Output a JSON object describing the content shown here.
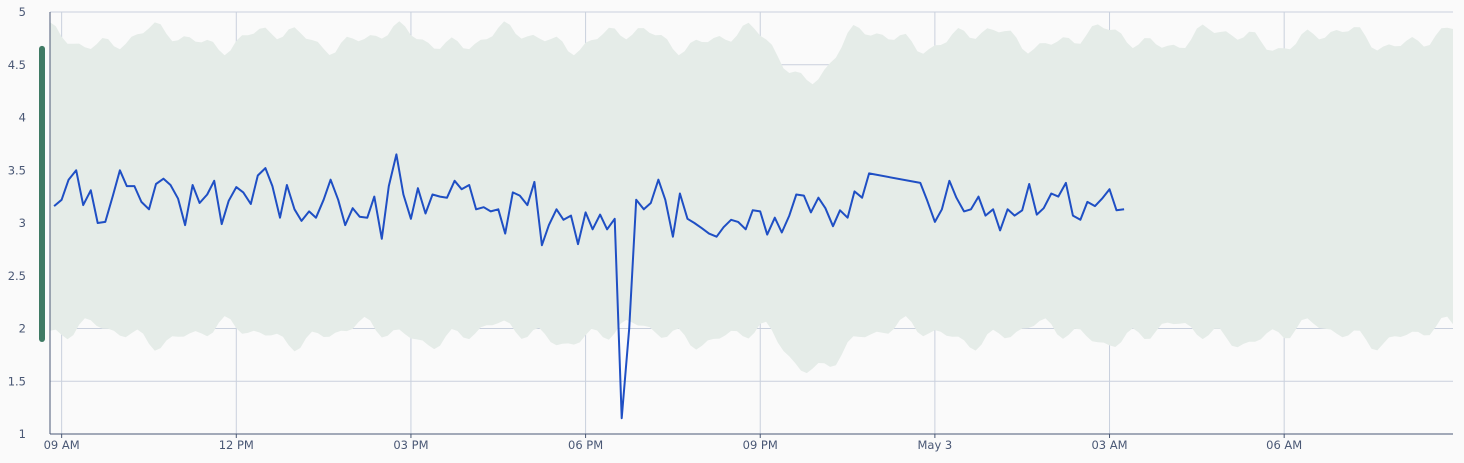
{
  "chart_data": {
    "type": "line",
    "title": "",
    "xlabel": "",
    "ylabel": "",
    "ylim": [
      1,
      5
    ],
    "y_ticks": [
      "1",
      "1.5",
      "2",
      "2.5",
      "3",
      "3.5",
      "4",
      "4.5",
      "5"
    ],
    "y_tick_values": [
      1,
      1.5,
      2,
      2.5,
      3,
      3.5,
      4,
      4.5,
      5
    ],
    "x_range_hours": [
      8.8,
      32.9
    ],
    "x_ticks": [
      {
        "label": "09 AM",
        "hour": 9
      },
      {
        "label": "12 PM",
        "hour": 12
      },
      {
        "label": "03 PM",
        "hour": 15
      },
      {
        "label": "06 PM",
        "hour": 18
      },
      {
        "label": "09 PM",
        "hour": 21
      },
      {
        "label": "May 3",
        "hour": 24
      },
      {
        "label": "03 AM",
        "hour": 27
      },
      {
        "label": "06 AM",
        "hour": 30
      }
    ],
    "grid": true,
    "colors": {
      "line": "#1f4fc4",
      "band": "#e5ece8",
      "marker": "#3f7a64"
    },
    "threshold_marker": {
      "from": 1.9,
      "to": 4.65
    },
    "series": [
      {
        "values": [
          [
            8.87,
            3.16
          ],
          [
            9.0,
            3.22
          ],
          [
            9.12,
            3.41
          ],
          [
            9.25,
            3.5
          ],
          [
            9.37,
            3.17
          ],
          [
            9.5,
            3.31
          ],
          [
            9.62,
            3.0
          ],
          [
            9.75,
            3.01
          ],
          [
            9.88,
            3.26
          ],
          [
            10.0,
            3.5
          ],
          [
            10.12,
            3.35
          ],
          [
            10.25,
            3.35
          ],
          [
            10.37,
            3.2
          ],
          [
            10.5,
            3.13
          ],
          [
            10.62,
            3.37
          ],
          [
            10.75,
            3.42
          ],
          [
            10.87,
            3.36
          ],
          [
            11.0,
            3.23
          ],
          [
            11.12,
            2.98
          ],
          [
            11.25,
            3.36
          ],
          [
            11.37,
            3.19
          ],
          [
            11.5,
            3.27
          ],
          [
            11.62,
            3.4
          ],
          [
            11.75,
            2.99
          ],
          [
            11.87,
            3.21
          ],
          [
            12.0,
            3.34
          ],
          [
            12.12,
            3.29
          ],
          [
            12.25,
            3.18
          ],
          [
            12.37,
            3.45
          ],
          [
            12.5,
            3.52
          ],
          [
            12.62,
            3.35
          ],
          [
            12.75,
            3.05
          ],
          [
            12.87,
            3.36
          ],
          [
            13.0,
            3.13
          ],
          [
            13.12,
            3.02
          ],
          [
            13.25,
            3.11
          ],
          [
            13.37,
            3.05
          ],
          [
            13.5,
            3.22
          ],
          [
            13.62,
            3.41
          ],
          [
            13.75,
            3.22
          ],
          [
            13.87,
            2.98
          ],
          [
            14.0,
            3.14
          ],
          [
            14.12,
            3.06
          ],
          [
            14.25,
            3.05
          ],
          [
            14.37,
            3.25
          ],
          [
            14.5,
            2.85
          ],
          [
            14.62,
            3.35
          ],
          [
            14.75,
            3.65
          ],
          [
            14.87,
            3.27
          ],
          [
            15.0,
            3.04
          ],
          [
            15.12,
            3.33
          ],
          [
            15.25,
            3.09
          ],
          [
            15.37,
            3.27
          ],
          [
            15.5,
            3.25
          ],
          [
            15.62,
            3.24
          ],
          [
            15.75,
            3.4
          ],
          [
            15.87,
            3.32
          ],
          [
            16.0,
            3.36
          ],
          [
            16.12,
            3.13
          ],
          [
            16.25,
            3.15
          ],
          [
            16.37,
            3.11
          ],
          [
            16.5,
            3.13
          ],
          [
            16.62,
            2.9
          ],
          [
            16.75,
            3.29
          ],
          [
            16.87,
            3.26
          ],
          [
            17.0,
            3.17
          ],
          [
            17.12,
            3.39
          ],
          [
            17.25,
            2.79
          ],
          [
            17.37,
            2.98
          ],
          [
            17.5,
            3.13
          ],
          [
            17.62,
            3.03
          ],
          [
            17.75,
            3.07
          ],
          [
            17.87,
            2.8
          ],
          [
            18.0,
            3.1
          ],
          [
            18.12,
            2.94
          ],
          [
            18.25,
            3.08
          ],
          [
            18.37,
            2.94
          ],
          [
            18.5,
            3.04
          ],
          [
            18.62,
            1.15
          ],
          [
            18.75,
            2.0
          ],
          [
            18.87,
            3.22
          ],
          [
            19.0,
            3.13
          ],
          [
            19.12,
            3.19
          ],
          [
            19.25,
            3.41
          ],
          [
            19.37,
            3.22
          ],
          [
            19.5,
            2.87
          ],
          [
            19.62,
            3.28
          ],
          [
            19.75,
            3.04
          ],
          [
            19.87,
            3.0
          ],
          [
            20.0,
            2.95
          ],
          [
            20.12,
            2.9
          ],
          [
            20.25,
            2.87
          ],
          [
            20.37,
            2.96
          ],
          [
            20.5,
            3.03
          ],
          [
            20.62,
            3.01
          ],
          [
            20.75,
            2.94
          ],
          [
            20.87,
            3.12
          ],
          [
            21.0,
            3.11
          ],
          [
            21.12,
            2.89
          ],
          [
            21.25,
            3.05
          ],
          [
            21.37,
            2.91
          ],
          [
            21.5,
            3.07
          ],
          [
            21.62,
            3.27
          ],
          [
            21.75,
            3.26
          ],
          [
            21.87,
            3.1
          ],
          [
            22.0,
            3.24
          ],
          [
            22.12,
            3.14
          ],
          [
            22.25,
            2.97
          ],
          [
            22.37,
            3.12
          ],
          [
            22.5,
            3.05
          ],
          [
            22.62,
            3.3
          ],
          [
            22.75,
            3.24
          ],
          [
            22.87,
            3.47
          ],
          [
            23.75,
            3.38
          ],
          [
            23.87,
            3.21
          ],
          [
            24.0,
            3.01
          ],
          [
            24.12,
            3.13
          ],
          [
            24.25,
            3.4
          ],
          [
            24.37,
            3.24
          ],
          [
            24.5,
            3.11
          ],
          [
            24.62,
            3.13
          ],
          [
            24.75,
            3.25
          ],
          [
            24.87,
            3.07
          ],
          [
            25.0,
            3.13
          ],
          [
            25.12,
            2.93
          ],
          [
            25.25,
            3.13
          ],
          [
            25.37,
            3.07
          ],
          [
            25.5,
            3.12
          ],
          [
            25.62,
            3.37
          ],
          [
            25.75,
            3.08
          ],
          [
            25.87,
            3.14
          ],
          [
            26.0,
            3.28
          ],
          [
            26.12,
            3.25
          ],
          [
            26.25,
            3.38
          ],
          [
            26.37,
            3.07
          ],
          [
            26.5,
            3.03
          ],
          [
            26.62,
            3.2
          ],
          [
            26.75,
            3.16
          ],
          [
            26.87,
            3.23
          ],
          [
            27.0,
            3.32
          ],
          [
            27.12,
            3.12
          ],
          [
            27.25,
            3.13
          ]
        ]
      }
    ]
  }
}
